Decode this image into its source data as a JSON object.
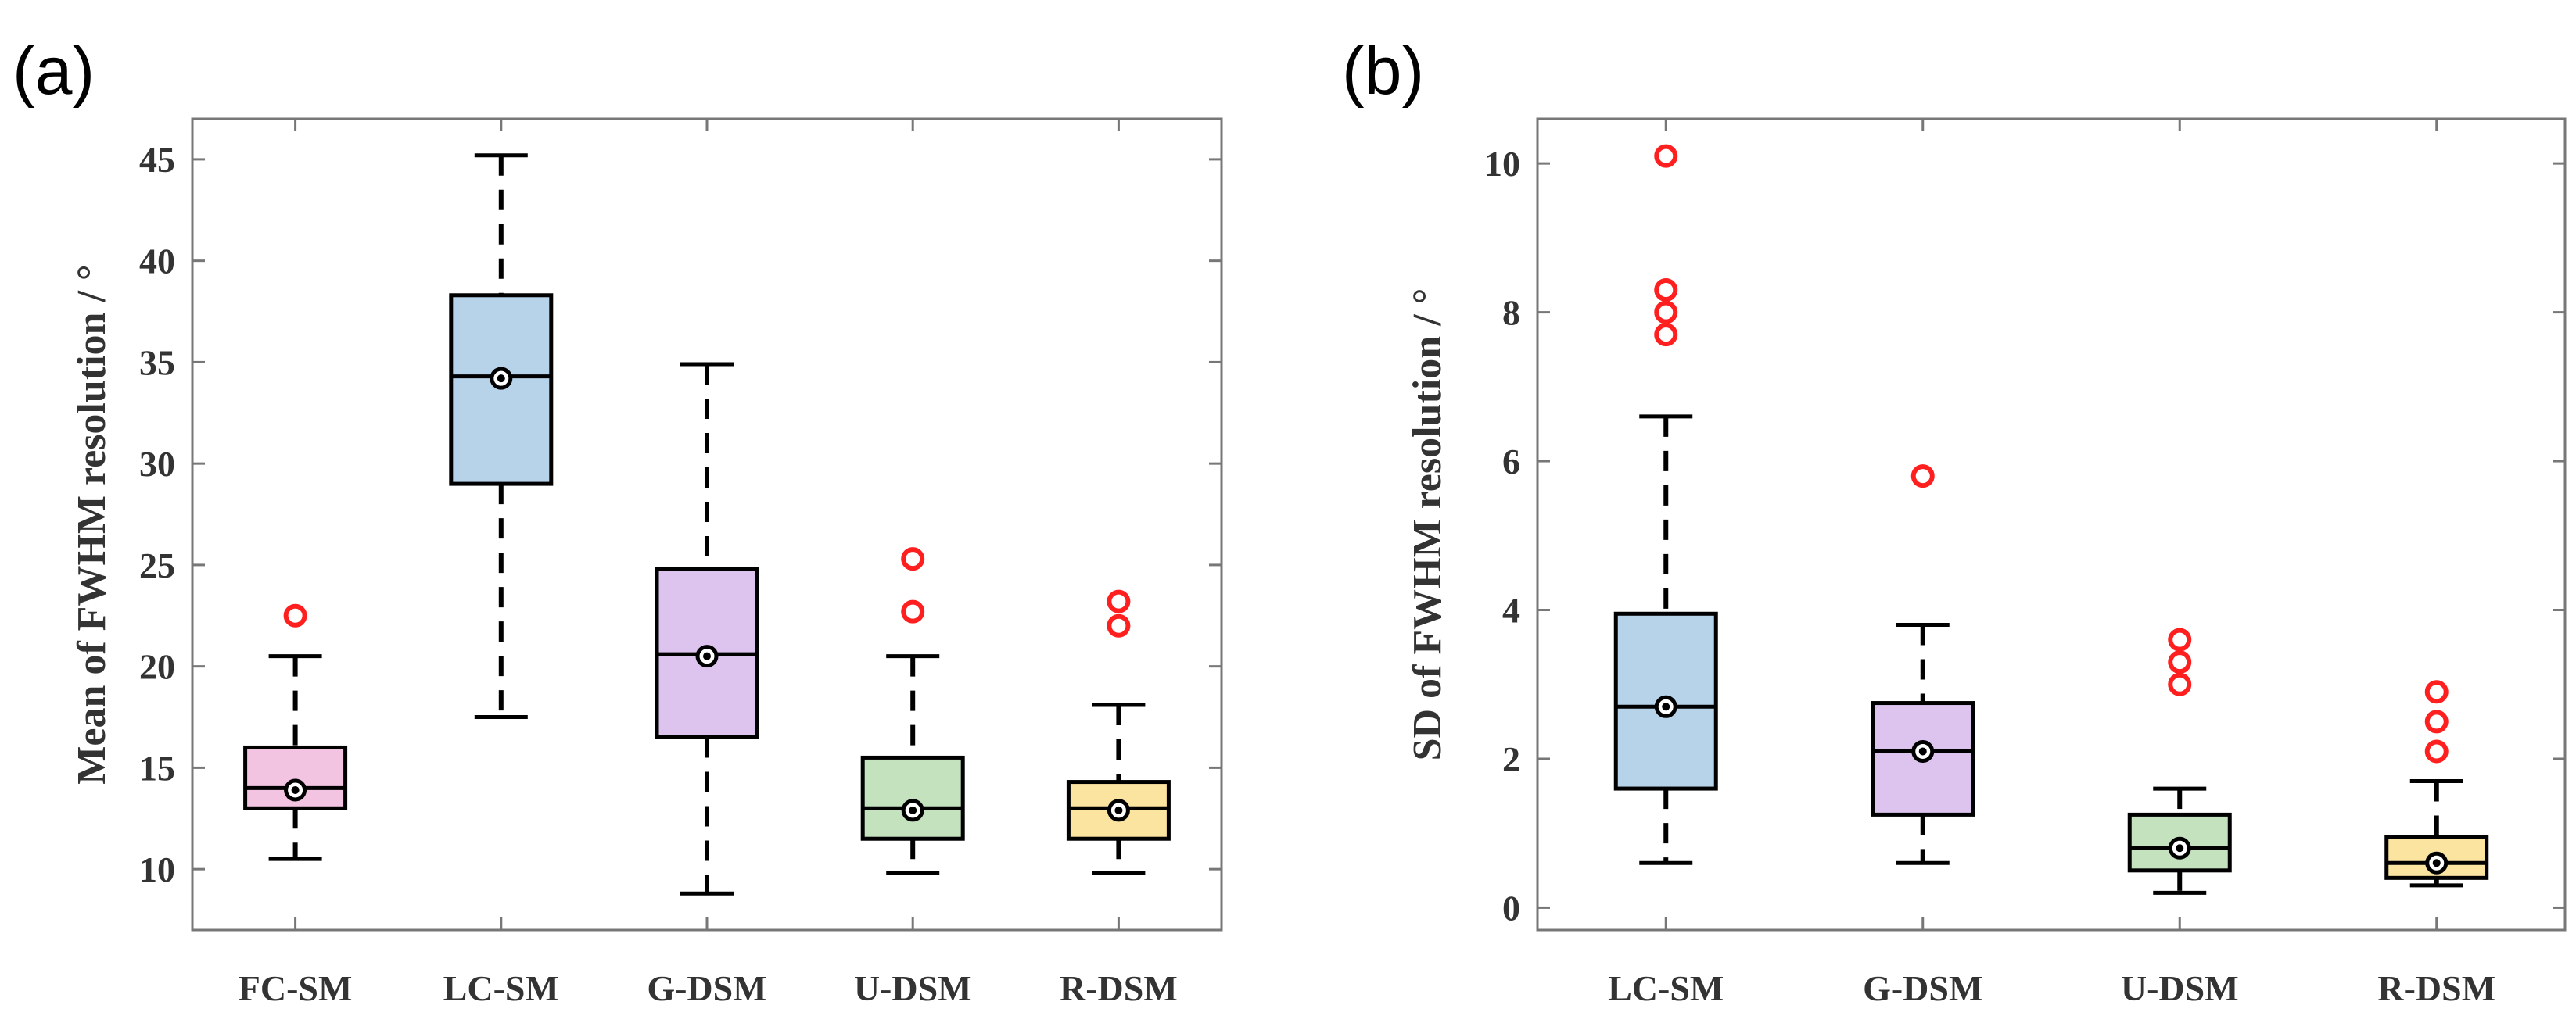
{
  "colors": {
    "fc_sm": "#f3c4e2",
    "lc_sm": "#b7d3ea",
    "g_dsm": "#dcc4ef",
    "u_dsm": "#c3e2bd",
    "r_dsm": "#fbe3a0",
    "outlier": "#ff1f1f"
  },
  "chart_data": [
    {
      "type": "box",
      "panel_label": "(a)",
      "title": "",
      "xlabel": "",
      "ylabel": "Mean of FWHM resolution / °",
      "ylim": [
        7,
        47
      ],
      "yticks": [
        10,
        15,
        20,
        25,
        30,
        35,
        40,
        45
      ],
      "categories": [
        "FC-SM",
        "LC-SM",
        "G-DSM",
        "U-DSM",
        "R-DSM"
      ],
      "series": [
        {
          "name": "FC-SM",
          "color_key": "fc_sm",
          "whisker_low": 10.5,
          "q1": 13.0,
          "median": 14.0,
          "q3": 16.0,
          "whisker_high": 20.5,
          "mean": 13.9,
          "outliers": [
            22.5
          ]
        },
        {
          "name": "LC-SM",
          "color_key": "lc_sm",
          "whisker_low": 17.5,
          "q1": 29.0,
          "median": 34.3,
          "q3": 38.3,
          "whisker_high": 45.2,
          "mean": 34.2,
          "outliers": []
        },
        {
          "name": "G-DSM",
          "color_key": "g_dsm",
          "whisker_low": 8.8,
          "q1": 16.5,
          "median": 20.6,
          "q3": 24.8,
          "whisker_high": 34.9,
          "mean": 20.5,
          "outliers": []
        },
        {
          "name": "U-DSM",
          "color_key": "u_dsm",
          "whisker_low": 9.8,
          "q1": 11.5,
          "median": 13.0,
          "q3": 15.5,
          "whisker_high": 20.5,
          "mean": 12.9,
          "outliers": [
            22.7,
            25.3
          ]
        },
        {
          "name": "R-DSM",
          "color_key": "r_dsm",
          "whisker_low": 9.8,
          "q1": 11.5,
          "median": 13.0,
          "q3": 14.3,
          "whisker_high": 18.1,
          "mean": 12.9,
          "outliers": [
            22.0,
            23.2
          ]
        }
      ]
    },
    {
      "type": "box",
      "panel_label": "(b)",
      "title": "",
      "xlabel": "",
      "ylabel": "SD of FWHM resolution / °",
      "ylim": [
        -0.3,
        10.6
      ],
      "yticks": [
        0,
        2,
        4,
        6,
        8,
        10
      ],
      "categories": [
        "LC-SM",
        "G-DSM",
        "U-DSM",
        "R-DSM"
      ],
      "series": [
        {
          "name": "LC-SM",
          "color_key": "lc_sm",
          "whisker_low": 0.6,
          "q1": 1.6,
          "median": 2.7,
          "q3": 3.95,
          "whisker_high": 6.6,
          "mean": 2.7,
          "outliers": [
            7.7,
            8.0,
            8.3,
            10.1
          ]
        },
        {
          "name": "G-DSM",
          "color_key": "g_dsm",
          "whisker_low": 0.6,
          "q1": 1.25,
          "median": 2.1,
          "q3": 2.75,
          "whisker_high": 3.8,
          "mean": 2.1,
          "outliers": [
            5.8
          ]
        },
        {
          "name": "U-DSM",
          "color_key": "u_dsm",
          "whisker_low": 0.2,
          "q1": 0.5,
          "median": 0.8,
          "q3": 1.25,
          "whisker_high": 1.6,
          "mean": 0.8,
          "outliers": [
            3.0,
            3.3,
            3.6
          ]
        },
        {
          "name": "R-DSM",
          "color_key": "r_dsm",
          "whisker_low": 0.3,
          "q1": 0.4,
          "median": 0.6,
          "q3": 0.95,
          "whisker_high": 1.7,
          "mean": 0.6,
          "outliers": [
            2.1,
            2.5,
            2.9
          ]
        }
      ]
    }
  ]
}
